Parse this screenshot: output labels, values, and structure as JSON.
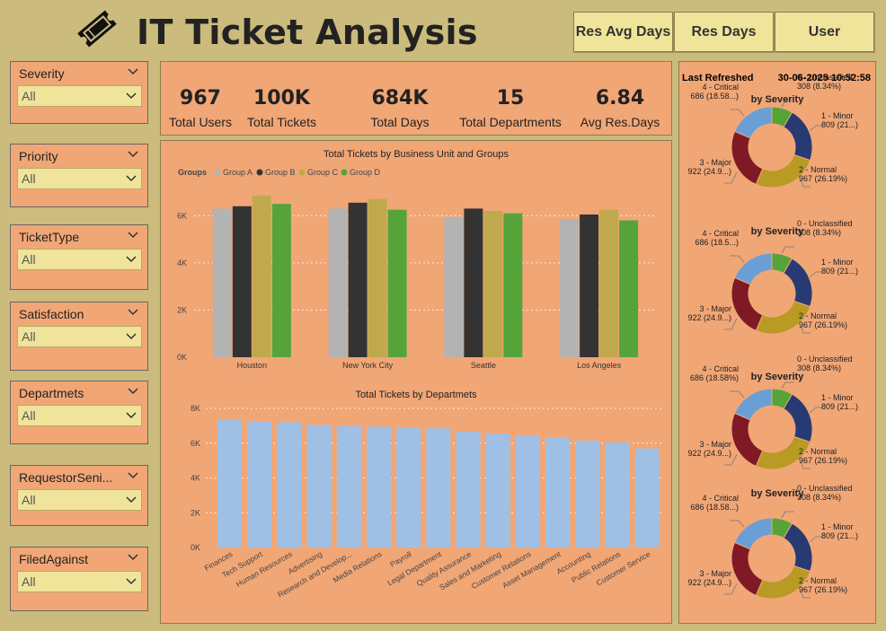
{
  "header": {
    "title": "IT Ticket Analysis",
    "buttons": [
      {
        "label": "Res Avg Days"
      },
      {
        "label": "Res Days"
      },
      {
        "label": "User"
      }
    ]
  },
  "slicers": [
    {
      "label": "Severity",
      "value": "All"
    },
    {
      "label": "Priority",
      "value": "All"
    },
    {
      "label": "TicketType",
      "value": "All"
    },
    {
      "label": "Satisfaction",
      "value": "All"
    },
    {
      "label": "Departmets",
      "value": "All"
    },
    {
      "label": "RequestorSeni...",
      "value": "All"
    },
    {
      "label": "FiledAgainst",
      "value": "All"
    }
  ],
  "kpis": [
    {
      "value": "967",
      "caption": "Total Users"
    },
    {
      "value": "100K",
      "caption": "Total Tickets"
    },
    {
      "value": "684K",
      "caption": "Total Days"
    },
    {
      "value": "15",
      "caption": "Total Departments"
    },
    {
      "value": "6.84",
      "caption": "Avg Res.Days"
    }
  ],
  "refresh": {
    "label": "Last Refreshed",
    "value": "30-06-2025 10:52:58"
  },
  "colors": {
    "group_a": "#b3b3b3",
    "group_b": "#333333",
    "group_c": "#bfa94c",
    "group_d": "#56a33a",
    "dept_bar": "#9fc0e4",
    "sev_unclassified": "#56a33a",
    "sev_minor": "#283a73",
    "sev_normal": "#b89a24",
    "sev_major": "#7f1a24",
    "sev_critical": "#6a9fd6"
  },
  "chart_data": [
    {
      "type": "bar",
      "title": "Total Tickets by Business Unit and Groups",
      "legend_title": "Groups",
      "categories": [
        "Houston",
        "New York City",
        "Seattle",
        "Los Angeles"
      ],
      "series": [
        {
          "name": "Group A",
          "values": [
            6300,
            6300,
            5950,
            5850
          ]
        },
        {
          "name": "Group B",
          "values": [
            6400,
            6550,
            6300,
            6050
          ]
        },
        {
          "name": "Group C",
          "values": [
            6850,
            6700,
            6200,
            6250
          ]
        },
        {
          "name": "Group D",
          "values": [
            6500,
            6250,
            6100,
            5800
          ]
        }
      ],
      "yticks": [
        "0K",
        "2K",
        "4K",
        "6K"
      ],
      "ylim": [
        0,
        7000
      ],
      "legend_position": "top-left"
    },
    {
      "type": "bar",
      "title": "Total Tickets by Departmets",
      "categories": [
        "Finances",
        "Tech Support",
        "Human Resources",
        "Advertising",
        "Research and Develop...",
        "Media Relations",
        "Payroll",
        "Legal Department",
        "Quality Assurance",
        "Sales and Marketing",
        "Customer Relations",
        "Asset Management",
        "Accounting",
        "Public Relations",
        "Customer Service"
      ],
      "values": [
        7350,
        7250,
        7200,
        7050,
        7000,
        6950,
        6900,
        6850,
        6650,
        6550,
        6450,
        6350,
        6150,
        6050,
        5700
      ],
      "yticks": [
        "0K",
        "2K",
        "4K",
        "6K",
        "8K"
      ],
      "ylim": [
        0,
        8000
      ]
    },
    {
      "type": "pie",
      "title": "by Severity",
      "slices": [
        {
          "label": "0 - Unclassified",
          "value": 308,
          "text": "308 (8.34%)"
        },
        {
          "label": "1 - Minor",
          "value": 809,
          "text": "809 (21...)"
        },
        {
          "label": "2 - Normal",
          "value": 967,
          "text": "967 (26.19%)"
        },
        {
          "label": "3 - Major",
          "value": 922,
          "text": "922 (24.9...)"
        },
        {
          "label": "4 - Critical",
          "value": 686,
          "text": "686 (18.58...)"
        }
      ]
    },
    {
      "type": "pie",
      "title": "by Severity",
      "slices": [
        {
          "label": "0 - Unclassified",
          "value": 308,
          "text": "308 (8.34%)"
        },
        {
          "label": "1 - Minor",
          "value": 809,
          "text": "809 (21...)"
        },
        {
          "label": "2 - Normal",
          "value": 967,
          "text": "967 (26.19%)"
        },
        {
          "label": "3 - Major",
          "value": 922,
          "text": "922 (24.9...)"
        },
        {
          "label": "4 - Critical",
          "value": 686,
          "text": "686 (18.5...)"
        }
      ]
    },
    {
      "type": "pie",
      "title": "by Severity",
      "slices": [
        {
          "label": "0 - Unclassified",
          "value": 308,
          "text": "308 (8.34%)"
        },
        {
          "label": "1 - Minor",
          "value": 809,
          "text": "809 (21...)"
        },
        {
          "label": "2 - Normal",
          "value": 967,
          "text": "967 (26.19%)"
        },
        {
          "label": "3 - Major",
          "value": 922,
          "text": "922 (24.9...)"
        },
        {
          "label": "4 - Critical",
          "value": 686,
          "text": "686 (18.58%)"
        }
      ]
    },
    {
      "type": "pie",
      "title": "by Severity",
      "slices": [
        {
          "label": "0 - Unclassified",
          "value": 308,
          "text": "308 (8.34%)"
        },
        {
          "label": "1 - Minor",
          "value": 809,
          "text": "809 (21...)"
        },
        {
          "label": "2 - Normal",
          "value": 967,
          "text": "967 (26.19%)"
        },
        {
          "label": "3 - Major",
          "value": 922,
          "text": "922 (24.9...)"
        },
        {
          "label": "4 - Critical",
          "value": 686,
          "text": "686 (18.58...)"
        }
      ]
    }
  ]
}
